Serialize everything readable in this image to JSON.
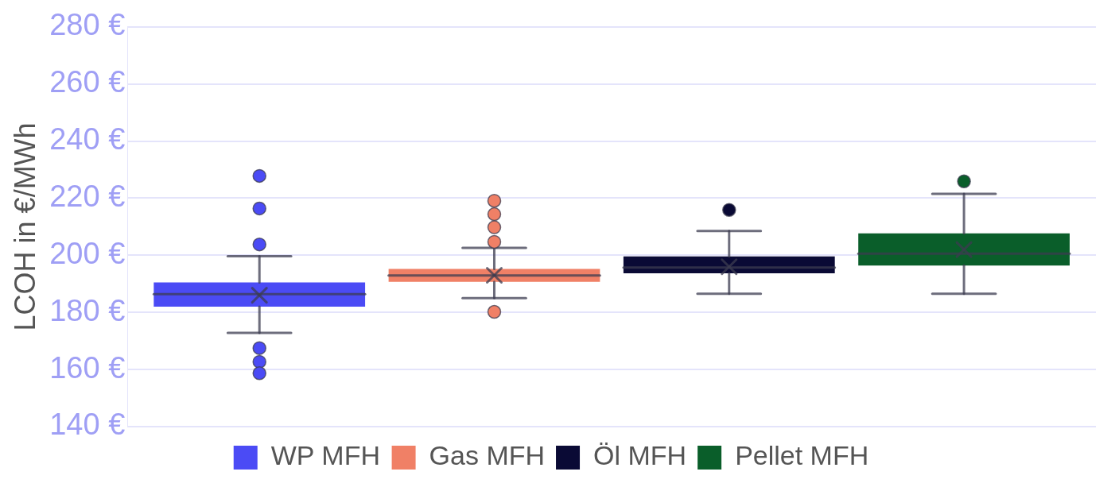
{
  "chart_data": {
    "type": "box",
    "ylabel": "LCOH in €/MWh",
    "categories": [
      null
    ],
    "ylim": [
      140,
      280
    ],
    "yticks": [
      {
        "value": 140,
        "label": "140 €"
      },
      {
        "value": 160,
        "label": "160 €"
      },
      {
        "value": 180,
        "label": "180 €"
      },
      {
        "value": 200,
        "label": "200 €"
      },
      {
        "value": 220,
        "label": "220 €"
      },
      {
        "value": 240,
        "label": "240 €"
      },
      {
        "value": 260,
        "label": "260 €"
      },
      {
        "value": 280,
        "label": "280 €"
      }
    ],
    "grid": "y",
    "legend": "bottom",
    "tick_labels": "y",
    "series": [
      {
        "name": "WP MFH",
        "color": "#4b4bf5",
        "boxes": [
          {
            "low": 172.8,
            "q1": 182,
            "median": 186.4,
            "q3": 190.5,
            "high": 199.7,
            "mean": 186,
            "outliers": [
              227.8,
              216.4,
              203.8,
              167.5,
              162.7,
              158.7
            ]
          }
        ]
      },
      {
        "name": "Gas MFH",
        "color": "#f08066",
        "boxes": [
          {
            "low": 185,
            "q1": 190.7,
            "median": 192.9,
            "q3": 195.2,
            "high": 202.6,
            "mean": 193,
            "outliers": [
              219.1,
              214.4,
              209.8,
              204.7,
              180.2
            ]
          }
        ]
      },
      {
        "name": "Öl MFH",
        "color": "#0a0a35",
        "boxes": [
          {
            "low": 186.5,
            "q1": 193.7,
            "median": 195.7,
            "q3": 199.6,
            "high": 208.5,
            "mean": 196,
            "outliers": [
              215.9
            ]
          }
        ]
      },
      {
        "name": "Pellet MFH",
        "color": "#0a5e2a",
        "boxes": [
          {
            "low": 186.5,
            "q1": 196.4,
            "median": 200.6,
            "q3": 207.7,
            "high": 221.5,
            "mean": 202,
            "outliers": [
              225.9
            ]
          }
        ]
      }
    ]
  }
}
